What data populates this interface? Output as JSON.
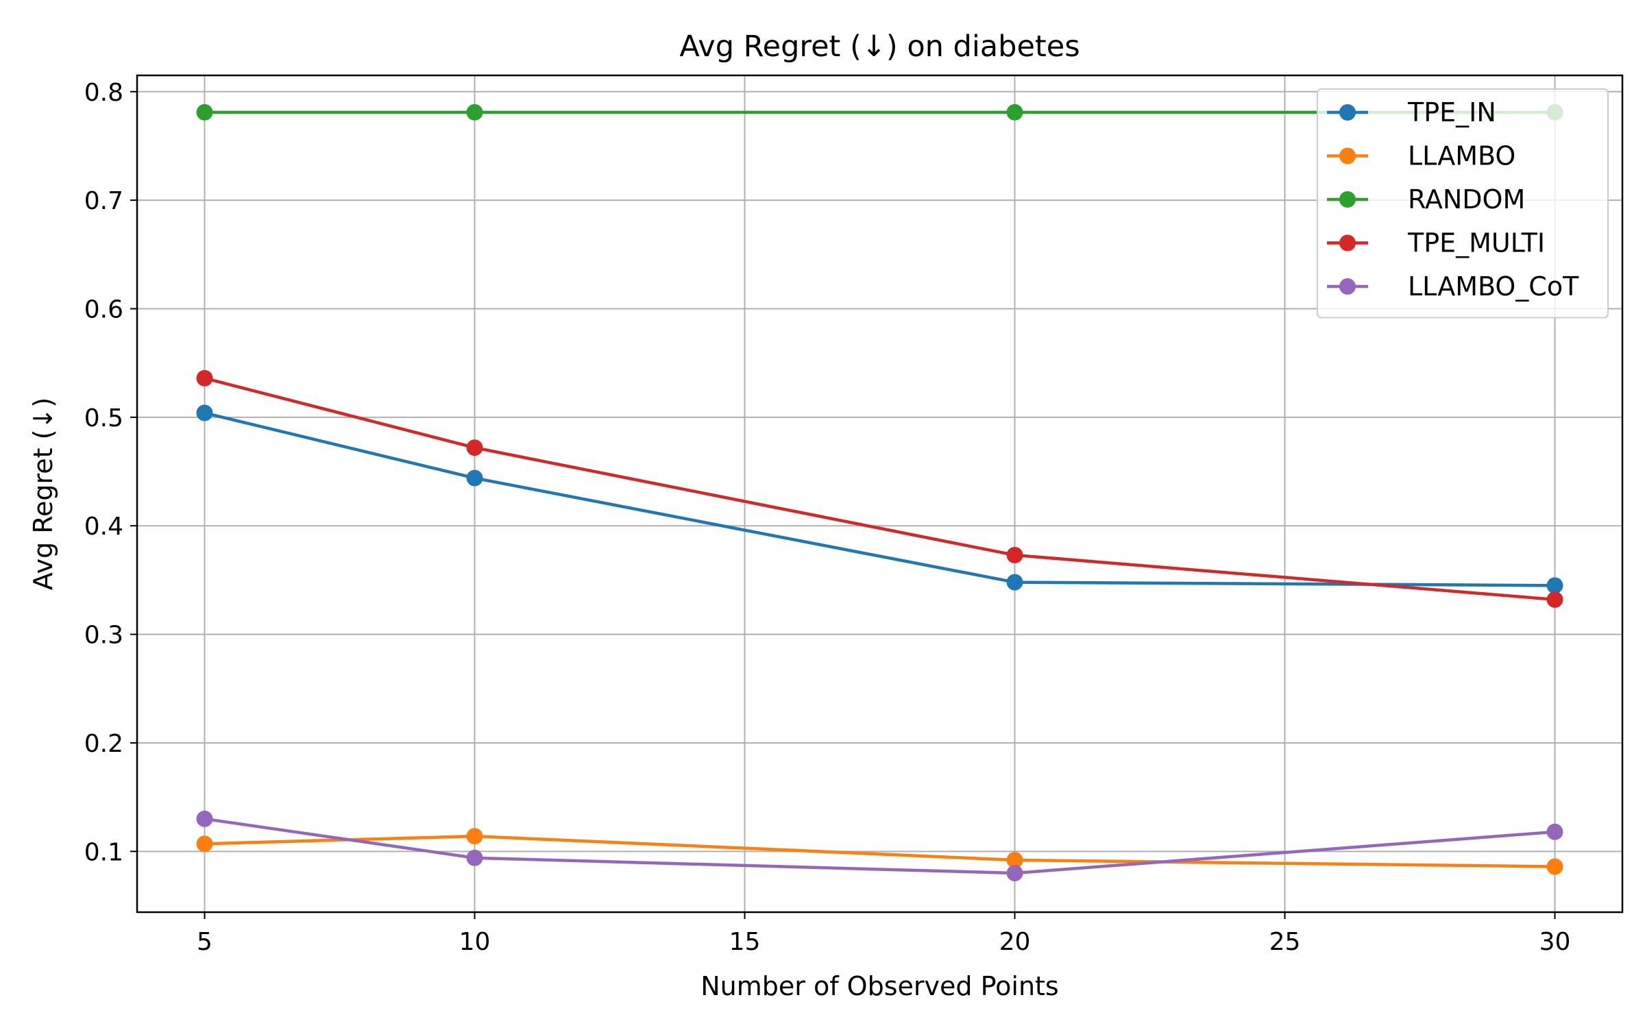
{
  "chart_data": {
    "type": "line",
    "title": "Avg Regret (↓) on diabetes",
    "xlabel": "Number of Observed Points",
    "ylabel": "Avg Regret (↓)",
    "x": [
      5,
      10,
      20,
      30
    ],
    "xlim": [
      3.75,
      31.25
    ],
    "ylim": [
      0.044,
      0.815
    ],
    "xticks": [
      5,
      10,
      15,
      20,
      25,
      30
    ],
    "yticks": [
      0.1,
      0.2,
      0.3,
      0.4,
      0.5,
      0.6,
      0.7,
      0.8
    ],
    "grid": true,
    "legend_position": "top-right",
    "series": [
      {
        "name": "TPE_IN",
        "color": "#1f77b4",
        "values": [
          0.504,
          0.444,
          0.348,
          0.345
        ]
      },
      {
        "name": "LLAMBO",
        "color": "#ff7f0e",
        "values": [
          0.107,
          0.114,
          0.092,
          0.086
        ]
      },
      {
        "name": "RANDOM",
        "color": "#2ca02c",
        "values": [
          0.781,
          0.781,
          0.781,
          0.781
        ]
      },
      {
        "name": "TPE_MULTI",
        "color": "#d62728",
        "values": [
          0.536,
          0.472,
          0.373,
          0.332
        ]
      },
      {
        "name": "LLAMBO_CoT",
        "color": "#9467bd",
        "values": [
          0.13,
          0.094,
          0.08,
          0.118
        ]
      }
    ]
  }
}
